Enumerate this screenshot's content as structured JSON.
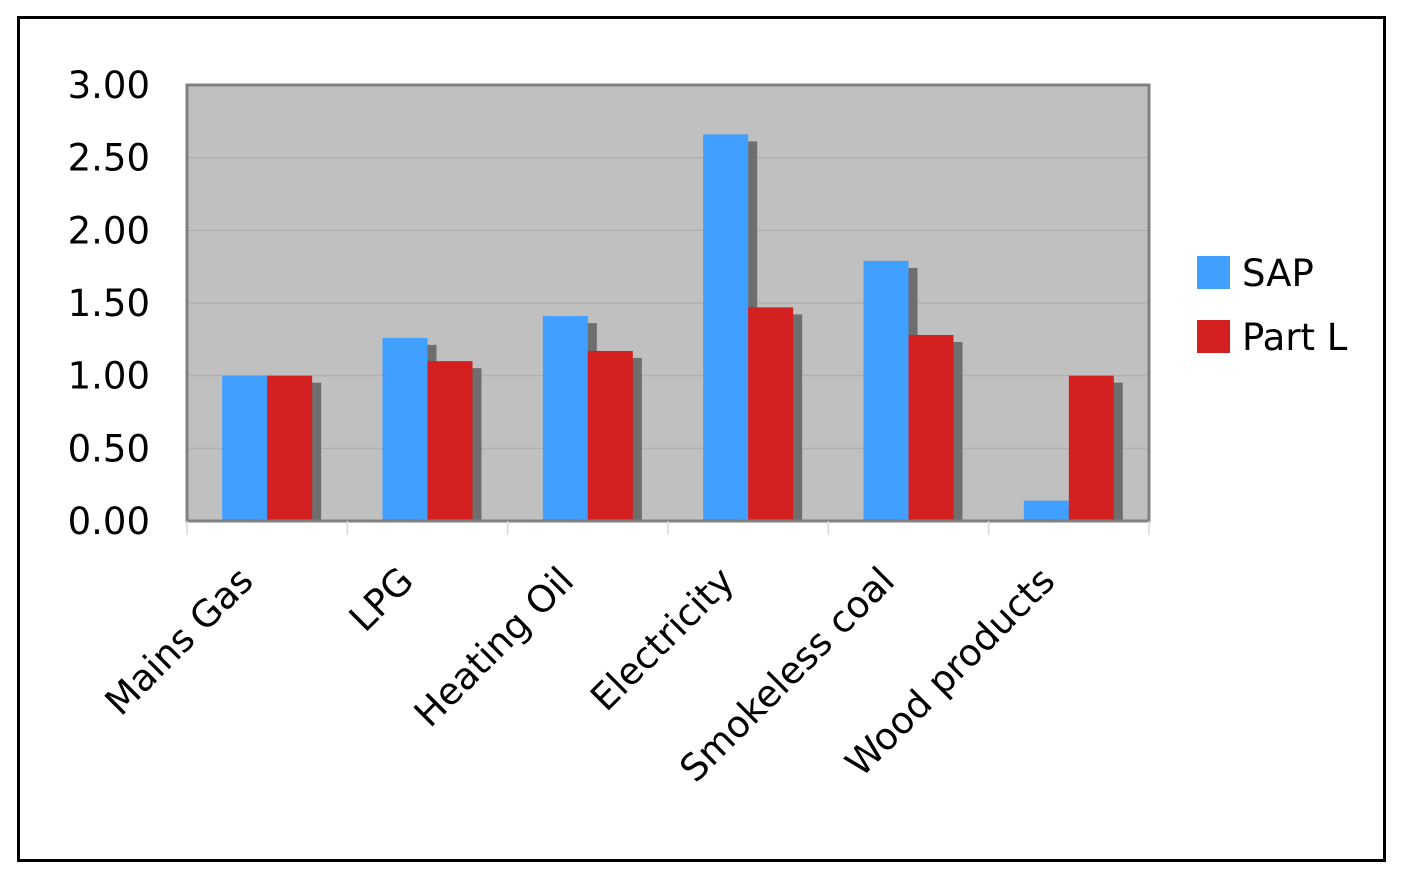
{
  "chart_data": {
    "type": "bar",
    "title": "",
    "xlabel": "",
    "ylabel": "",
    "categories": [
      "Mains Gas",
      "LPG",
      "Heating Oil",
      "Electricity",
      "Smokeless coal",
      "Wood products"
    ],
    "series": [
      {
        "name": "SAP",
        "values": [
          1.0,
          1.26,
          1.41,
          2.66,
          1.79,
          0.14
        ],
        "color": "#419FFF"
      },
      {
        "name": "Part L",
        "values": [
          1.0,
          1.1,
          1.17,
          1.47,
          1.28,
          1.0
        ],
        "color": "#D42020"
      }
    ],
    "ylim": [
      0,
      3
    ],
    "yticks": [
      "0.00",
      "0.50",
      "1.00",
      "1.50",
      "2.00",
      "2.50",
      "3.00"
    ],
    "ytick_values": [
      0,
      0.5,
      1,
      1.5,
      2,
      2.5,
      3
    ],
    "grid": true,
    "legend": "right",
    "plot_background": "#C0C0C0",
    "shadow_color": "#6E6E6E"
  }
}
